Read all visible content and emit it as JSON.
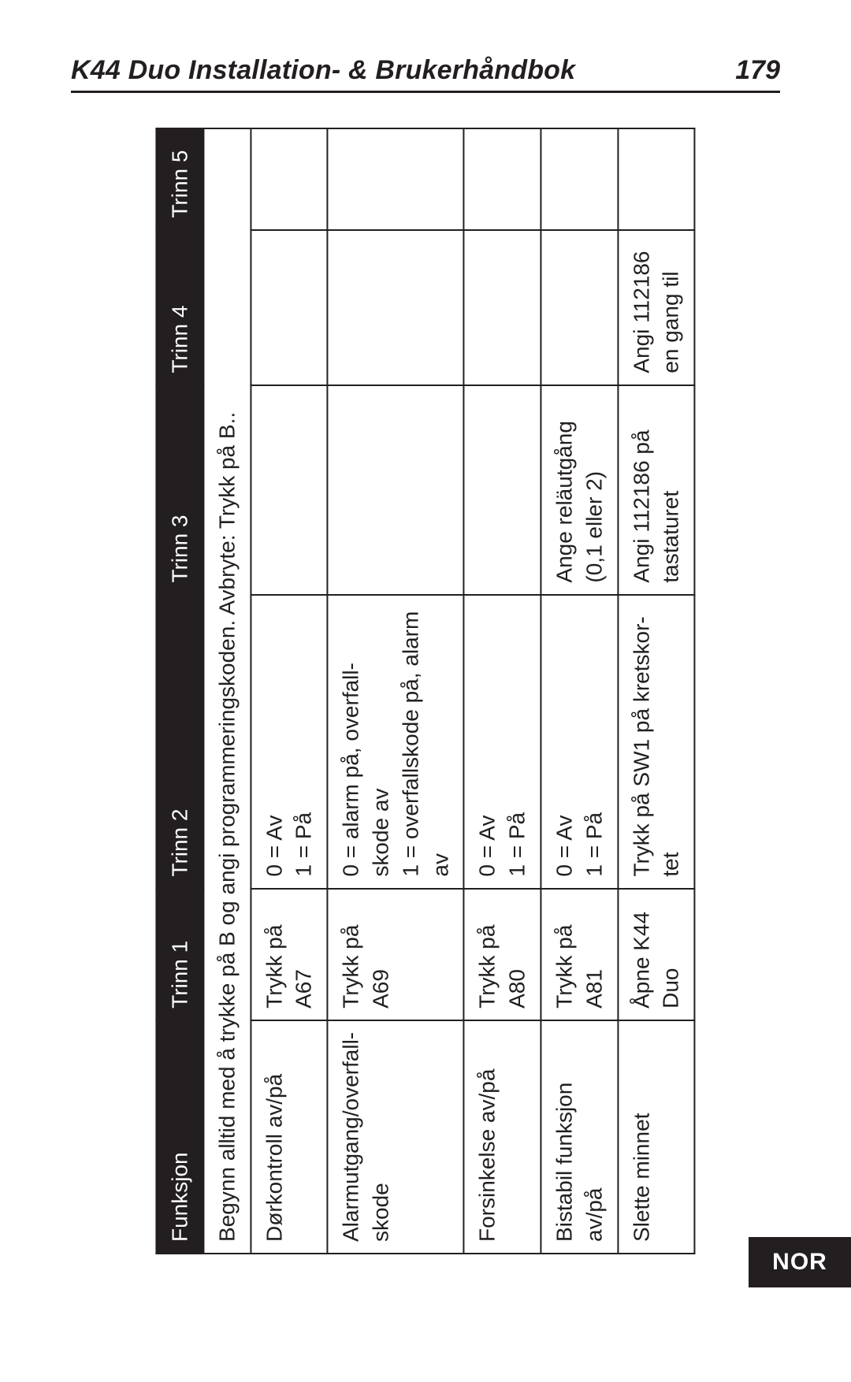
{
  "header": {
    "title": "K44 Duo Installation- & Brukerhåndbok",
    "page_number": "179"
  },
  "side_tab": "NOR",
  "table": {
    "caption": "Begynn alltid med å trykke på B og angi programmeringskoden. Avbryte: Trykk på B..",
    "columns": [
      "Funksjon",
      "Trinn 1",
      "Trinn 2",
      "Trinn 3",
      "Trinn 4",
      "Trinn 5"
    ],
    "rows": [
      {
        "func": "Dørkontroll av/på",
        "t1": "Trykk på A67",
        "t2": "0 = Av\n1 = På",
        "t3": "",
        "t4": "",
        "t5": ""
      },
      {
        "func": "Alarmutgang/overfall-skode",
        "t1": "Trykk på A69",
        "t2": "0 = alarm på, overfall-skode av\n1 = overfallskode på, alarm av",
        "t3": "",
        "t4": "",
        "t5": ""
      },
      {
        "func": "Forsinkelse av/på",
        "t1": "Trykk på A80",
        "t2": "0 = Av\n1 = På",
        "t3": "",
        "t4": "",
        "t5": ""
      },
      {
        "func": "Bistabil funksjon av/på",
        "t1": "Trykk på A81",
        "t2": "0 = Av\n1 = På",
        "t3": "Ange reläutgång (0,1 eller 2)",
        "t4": "",
        "t5": ""
      },
      {
        "func": "Slette minnet",
        "t1": "Åpne K44 Duo",
        "t2": "Trykk på SW1 på kretskor-tet",
        "t3": "Angi 112186 på tastaturet",
        "t4": "Angi 112186 en gang til",
        "t5": ""
      }
    ]
  },
  "colors": {
    "text": "#231f20",
    "header_bg": "#231f20",
    "header_fg": "#ffffff",
    "page_bg": "#ffffff"
  }
}
